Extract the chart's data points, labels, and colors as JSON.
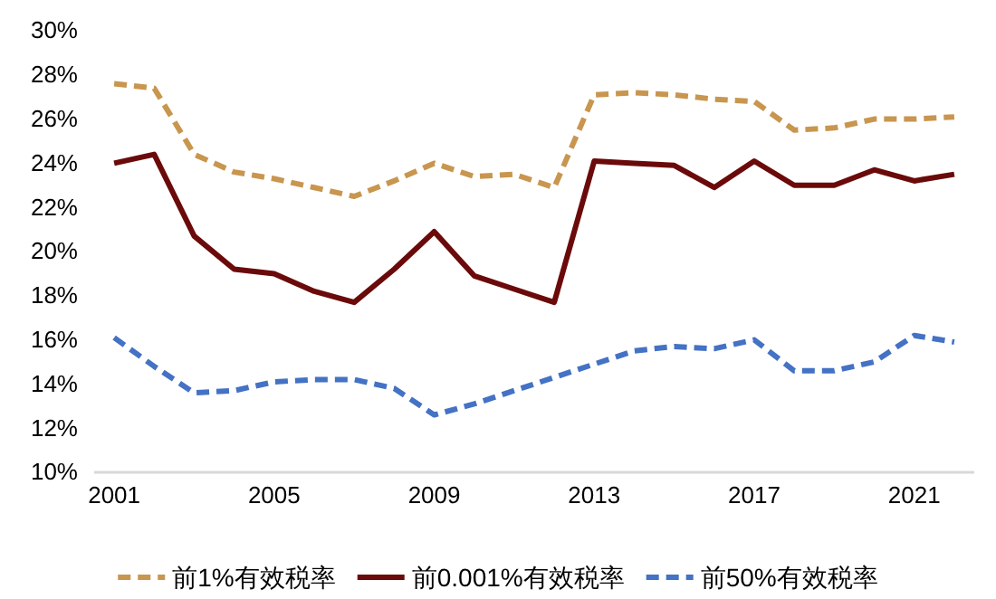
{
  "chart_data": {
    "type": "line",
    "x": [
      2001,
      2002,
      2003,
      2004,
      2005,
      2006,
      2007,
      2008,
      2009,
      2010,
      2011,
      2012,
      2013,
      2014,
      2015,
      2016,
      2017,
      2018,
      2019,
      2020,
      2021,
      2022
    ],
    "series": [
      {
        "name": "前1%有效税率",
        "color": "#c8964f",
        "line_style": "dashed",
        "values": [
          27.6,
          27.4,
          24.4,
          23.6,
          23.3,
          22.9,
          22.5,
          23.2,
          24.0,
          23.4,
          23.5,
          22.9,
          27.1,
          27.2,
          27.1,
          26.9,
          26.8,
          25.5,
          25.6,
          26.0,
          26.0,
          26.1
        ]
      },
      {
        "name": "前0.001%有效税率",
        "color": "#6b0a0a",
        "line_style": "solid",
        "values": [
          24.0,
          24.4,
          20.7,
          19.2,
          19.0,
          18.2,
          17.7,
          19.2,
          20.9,
          18.9,
          18.3,
          17.7,
          24.1,
          24.0,
          23.9,
          22.9,
          24.1,
          23.0,
          23.0,
          23.7,
          23.2,
          23.5
        ]
      },
      {
        "name": "前50%有效税率",
        "color": "#4472c4",
        "line_style": "dashed",
        "values": [
          16.1,
          14.8,
          13.6,
          13.7,
          14.1,
          14.2,
          14.2,
          13.8,
          12.6,
          13.1,
          13.7,
          14.3,
          14.9,
          15.5,
          15.7,
          15.6,
          16.0,
          14.6,
          14.6,
          15.0,
          16.2,
          15.9
        ]
      }
    ],
    "xlim": [
      2000.5,
      2022.5
    ],
    "xticks": [
      2001,
      2005,
      2009,
      2013,
      2017,
      2021
    ],
    "ylim": [
      10,
      30
    ],
    "yticks": [
      {
        "value": 10,
        "label": "10%"
      },
      {
        "value": 12,
        "label": "12%"
      },
      {
        "value": 14,
        "label": "14%"
      },
      {
        "value": 16,
        "label": "16%"
      },
      {
        "value": 18,
        "label": "18%"
      },
      {
        "value": 20,
        "label": "20%"
      },
      {
        "value": 22,
        "label": "22%"
      },
      {
        "value": 24,
        "label": "24%"
      },
      {
        "value": 26,
        "label": "26%"
      },
      {
        "value": 28,
        "label": "28%"
      },
      {
        "value": 30,
        "label": "30%"
      }
    ],
    "grid": false,
    "legend": "bottom",
    "marker": "none"
  }
}
